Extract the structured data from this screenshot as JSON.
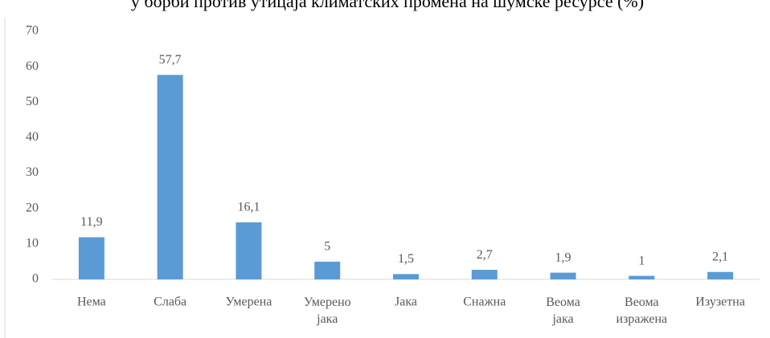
{
  "chart_data": {
    "type": "bar",
    "title": "у борби против утицаја климатских промена на шумске ресурсе (%)",
    "categories": [
      "Нема",
      "Слаба",
      "Умерена",
      "Умерено јака",
      "Јака",
      "Снажна",
      "Веома јака",
      "Веома изражена",
      "Изузетна"
    ],
    "values": [
      11.9,
      57.7,
      16.1,
      5,
      1.5,
      2.7,
      1.9,
      1,
      2.1
    ],
    "value_labels": [
      "11,9",
      "57,7",
      "16,1",
      "5",
      "1,5",
      "2,7",
      "1,9",
      "1",
      "2,1"
    ],
    "color": "#5b9bd5",
    "ylim": [
      0,
      70
    ],
    "yticks": [
      0,
      10,
      20,
      30,
      40,
      50,
      60,
      70
    ],
    "grid": false
  }
}
